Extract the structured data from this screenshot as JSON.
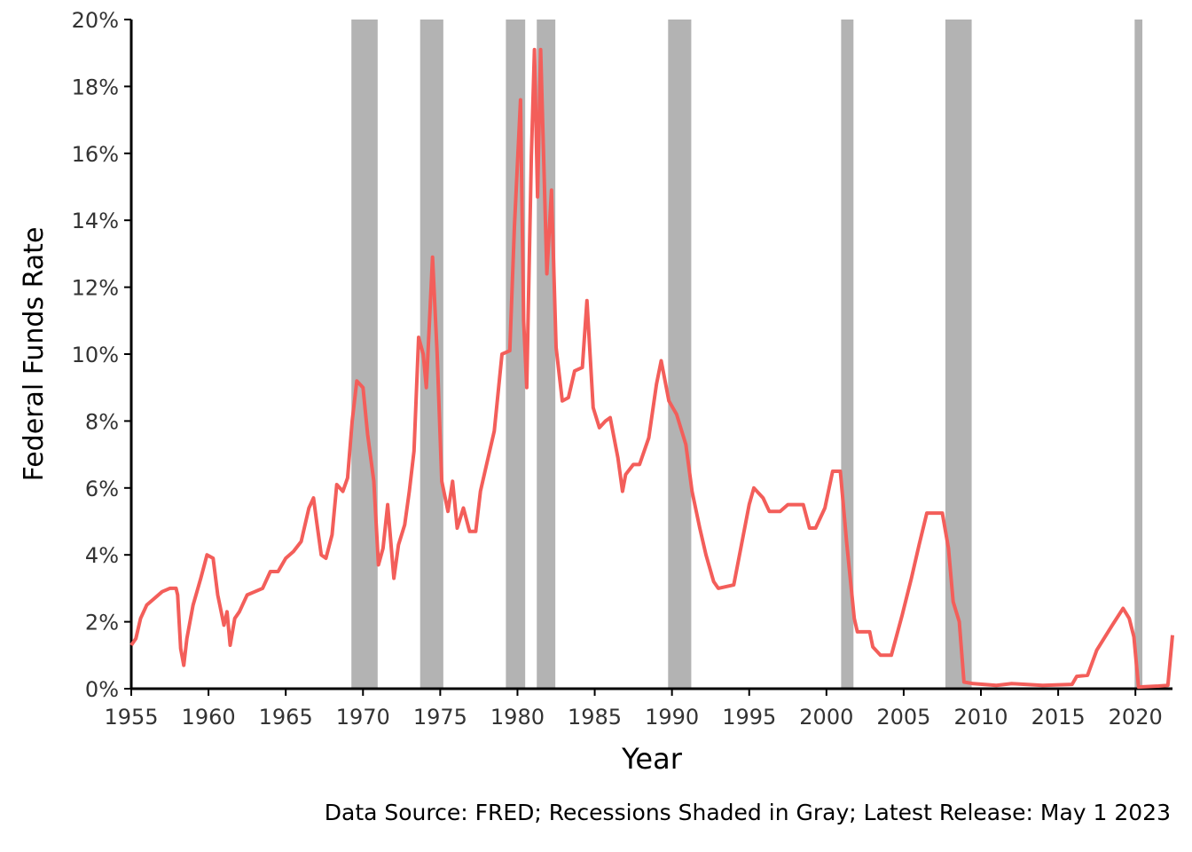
{
  "chart_data": {
    "type": "line",
    "y_label": "Federal Funds Rate",
    "x_label": "Year",
    "caption": "Data Source: FRED; Recessions Shaded in Gray; Latest Release:  May 1 2023",
    "xlim": [
      1955,
      2022.4
    ],
    "ylim": [
      0,
      20
    ],
    "xticks": [
      1955,
      1960,
      1965,
      1970,
      1975,
      1980,
      1985,
      1990,
      1995,
      2000,
      2005,
      2010,
      2015,
      2020
    ],
    "yticks": [
      {
        "value": 0,
        "label": "0%"
      },
      {
        "value": 2,
        "label": "2%"
      },
      {
        "value": 4,
        "label": "4%"
      },
      {
        "value": 6,
        "label": "6%"
      },
      {
        "value": 8,
        "label": "8%"
      },
      {
        "value": 10,
        "label": "10%"
      },
      {
        "value": 12,
        "label": "12%"
      },
      {
        "value": 14,
        "label": "14%"
      },
      {
        "value": 16,
        "label": "16%"
      },
      {
        "value": 18,
        "label": "18%"
      },
      {
        "value": 20,
        "label": "20%"
      }
    ],
    "recession_color": "#b3b3b3",
    "recessions": [
      [
        1969.25,
        1970.95
      ],
      [
        1973.7,
        1975.2
      ],
      [
        1979.25,
        1980.5
      ],
      [
        1981.25,
        1982.45
      ],
      [
        1989.75,
        1991.25
      ],
      [
        2000.95,
        2001.75
      ],
      [
        2007.7,
        2009.4
      ],
      [
        2019.95,
        2020.45
      ]
    ],
    "x": [
      1955.0,
      1955.3,
      1955.6,
      1956,
      1956.5,
      1957,
      1957.5,
      1957.9,
      1958.0,
      1958.2,
      1958.4,
      1958.6,
      1959,
      1959.5,
      1959.9,
      1960.3,
      1960.6,
      1961.0,
      1961.2,
      1961.4,
      1961.7,
      1962,
      1962.5,
      1963,
      1963.5,
      1964,
      1964.5,
      1965,
      1965.5,
      1966,
      1966.5,
      1966.8,
      1967,
      1967.3,
      1967.6,
      1968,
      1968.3,
      1968.7,
      1969,
      1969.3,
      1969.6,
      1970,
      1970.3,
      1970.7,
      1971,
      1971.3,
      1971.6,
      1972,
      1972.3,
      1972.7,
      1973,
      1973.3,
      1973.6,
      1973.9,
      1974.1,
      1974.5,
      1974.8,
      1975.1,
      1975.5,
      1975.8,
      1976.1,
      1976.5,
      1976.9,
      1977.3,
      1977.6,
      1978,
      1978.5,
      1979,
      1979.5,
      1979.8,
      1980.2,
      1980.4,
      1980.6,
      1980.9,
      1981.1,
      1981.3,
      1981.5,
      1981.9,
      1982.2,
      1982.5,
      1982.9,
      1983.3,
      1983.7,
      1984.2,
      1984.5,
      1984.9,
      1985.3,
      1985.7,
      1986.0,
      1986.5,
      1986.8,
      1987.0,
      1987.5,
      1987.9,
      1988.5,
      1989,
      1989.3,
      1989.8,
      1990.3,
      1990.9,
      1991.3,
      1991.8,
      1992.2,
      1992.7,
      1993,
      1994,
      1994.5,
      1995.0,
      1995.3,
      1995.9,
      1996.3,
      1997,
      1997.5,
      1998.5,
      1998.9,
      1999.3,
      1999.9,
      2000.4,
      2000.9,
      2001.3,
      2001.8,
      2002,
      2002.8,
      2003,
      2003.5,
      2004.2,
      2004.9,
      2005.5,
      2006,
      2006.5,
      2007.5,
      2007.9,
      2008.2,
      2008.6,
      2008.9,
      2009.5,
      2011,
      2012,
      2014,
      2015.9,
      2016.2,
      2016.9,
      2017.5,
      2018.5,
      2019.2,
      2019.6,
      2019.9,
      2020.2,
      2021.5,
      2022.1,
      2022.4
    ],
    "series": [
      {
        "name": "Federal Funds Rate",
        "color": "#f35e5a",
        "values": [
          1.3,
          1.5,
          2.1,
          2.5,
          2.7,
          2.9,
          3.0,
          3.0,
          2.8,
          1.2,
          0.7,
          1.5,
          2.5,
          3.3,
          4.0,
          3.9,
          2.8,
          1.9,
          2.3,
          1.3,
          2.1,
          2.3,
          2.8,
          2.9,
          3.0,
          3.5,
          3.5,
          3.9,
          4.1,
          4.4,
          5.4,
          5.7,
          5.0,
          4.0,
          3.9,
          4.6,
          6.1,
          5.9,
          6.3,
          8.0,
          9.2,
          9.0,
          7.6,
          6.2,
          3.7,
          4.2,
          5.5,
          3.3,
          4.3,
          4.9,
          5.9,
          7.1,
          10.5,
          10.0,
          9.0,
          12.9,
          10.0,
          6.2,
          5.3,
          6.2,
          4.8,
          5.4,
          4.7,
          4.7,
          5.9,
          6.7,
          7.7,
          10.0,
          10.1,
          13.8,
          17.6,
          11.0,
          9.0,
          15.9,
          19.1,
          14.7,
          19.1,
          12.4,
          14.9,
          10.2,
          8.6,
          8.7,
          9.5,
          9.6,
          11.6,
          8.4,
          7.8,
          8.0,
          8.1,
          6.9,
          5.9,
          6.4,
          6.7,
          6.7,
          7.5,
          9.1,
          9.8,
          8.6,
          8.2,
          7.3,
          5.9,
          4.8,
          4.0,
          3.2,
          3.0,
          3.1,
          4.3,
          5.5,
          6.0,
          5.7,
          5.3,
          5.3,
          5.5,
          5.5,
          4.8,
          4.8,
          5.4,
          6.5,
          6.5,
          4.4,
          2.1,
          1.7,
          1.7,
          1.25,
          1.0,
          1.0,
          2.2,
          3.3,
          4.3,
          5.25,
          5.25,
          4.2,
          2.6,
          2.0,
          0.2,
          0.15,
          0.1,
          0.15,
          0.1,
          0.13,
          0.37,
          0.4,
          1.15,
          1.9,
          2.4,
          2.1,
          1.55,
          0.05,
          0.08,
          0.1,
          1.6
        ]
      }
    ]
  }
}
